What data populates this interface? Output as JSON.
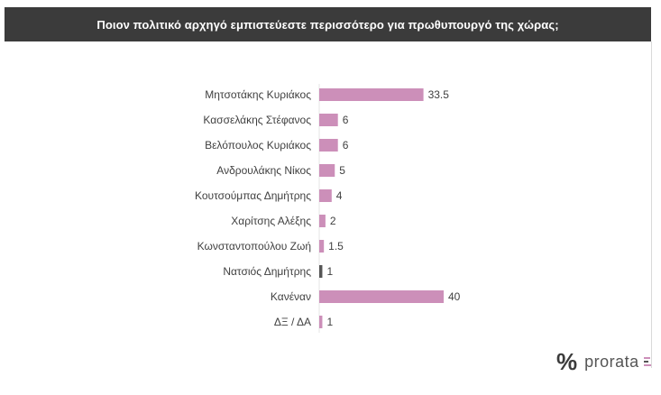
{
  "header": {
    "title": "Ποιον πολιτικό αρχηγό εμπιστεύεστε περισσότερο για πρωθυπουργό της χώρας;"
  },
  "brand": {
    "percent_symbol": "%",
    "name": "prorata"
  },
  "colors": {
    "header_bg": "#3b3b3b",
    "bar_default": "#cc8fb9",
    "bar_highlight": "#555555"
  },
  "chart_data": {
    "type": "bar",
    "orientation": "horizontal",
    "categories": [
      "Μητσοτάκης Κυριάκος",
      "Κασσελάκης Στέφανος",
      "Βελόπουλος Κυριάκος",
      "Ανδρουλάκης Νίκος",
      "Κουτσούμπας Δημήτρης",
      "Χαρίτσης Αλέξης",
      "Κωνσταντοπούλου Ζωή",
      "Νατσιός Δημήτρης",
      "Κανέναν",
      "ΔΞ / ΔΑ"
    ],
    "values": [
      33.5,
      6,
      6,
      5,
      4,
      2,
      1.5,
      1,
      40,
      1
    ],
    "value_labels": [
      "33.5",
      "6",
      "6",
      "5",
      "4",
      "2",
      "1.5",
      "1",
      "40",
      "1"
    ],
    "bar_colors": [
      "#cc8fb9",
      "#cc8fb9",
      "#cc8fb9",
      "#cc8fb9",
      "#cc8fb9",
      "#cc8fb9",
      "#cc8fb9",
      "#555555",
      "#cc8fb9",
      "#cc8fb9"
    ],
    "xlim": [
      0,
      40
    ],
    "grid": false,
    "legend": "none"
  }
}
